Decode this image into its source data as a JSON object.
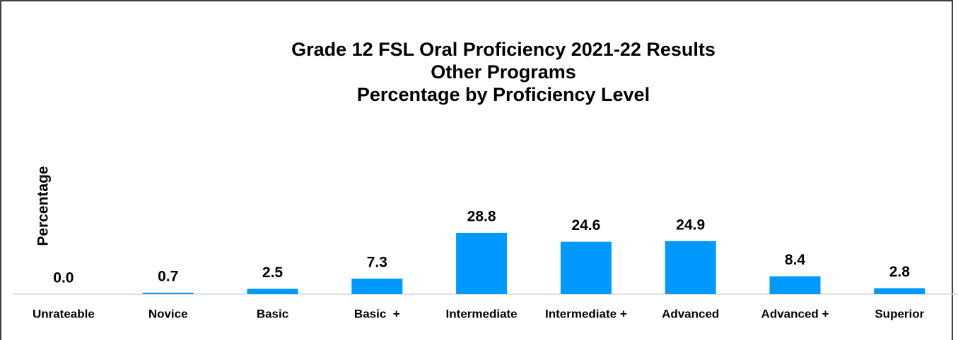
{
  "chart_data": {
    "type": "bar",
    "title": [
      "Grade 12 FSL Oral Proficiency 2021-22 Results",
      "Other Programs",
      "Percentage by Proficiency Level"
    ],
    "y_label": "Percentage",
    "categories": [
      "Unrateable",
      "Novice",
      "Basic",
      "Basic  +",
      "Intermediate",
      "Intermediate +",
      "Advanced",
      "Advanced +",
      "Superior"
    ],
    "values": [
      0,
      0.7,
      2.5,
      7.3,
      28.8,
      24.6,
      24.9,
      8.4,
      2.8
    ],
    "value_labels": [
      "0.0",
      "0.7",
      "2.5",
      "7.3",
      "28.8",
      "24.6",
      "24.9",
      "8.4",
      "2.8"
    ],
    "color": "#0099ff"
  }
}
